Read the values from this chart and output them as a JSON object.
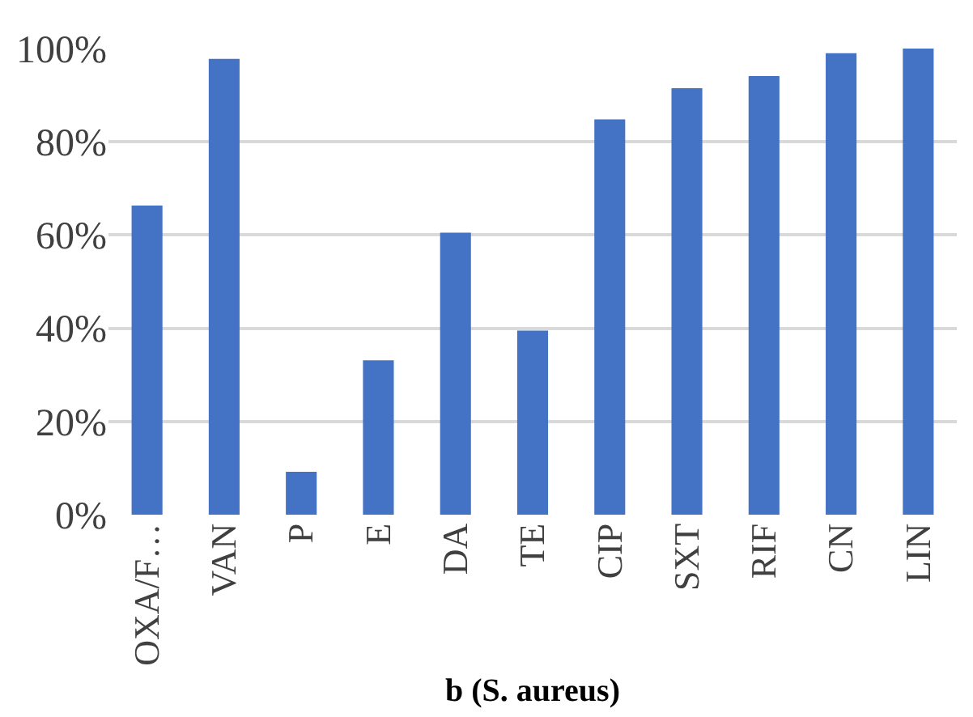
{
  "chart_data": {
    "type": "bar",
    "xlabel": "b (S. aureus)",
    "categories": [
      "OXA/F…",
      "VAN",
      "P",
      "E",
      "DA",
      "TE",
      "CIP",
      "SXT",
      "RIF",
      "CN",
      "LIN"
    ],
    "values": [
      66.3,
      97.8,
      9.2,
      33.1,
      60.5,
      39.5,
      84.8,
      91.5,
      94.1,
      99.0,
      100
    ],
    "color": "#4472c4",
    "ylim": [
      0,
      100
    ],
    "yticks": [
      {
        "value": 0,
        "label": "0%"
      },
      {
        "value": 20,
        "label": "20%"
      },
      {
        "value": 40,
        "label": "40%"
      },
      {
        "value": 60,
        "label": "60%"
      },
      {
        "value": 80,
        "label": "80%"
      },
      {
        "value": 100,
        "label": "100%"
      }
    ],
    "grid": "y"
  }
}
